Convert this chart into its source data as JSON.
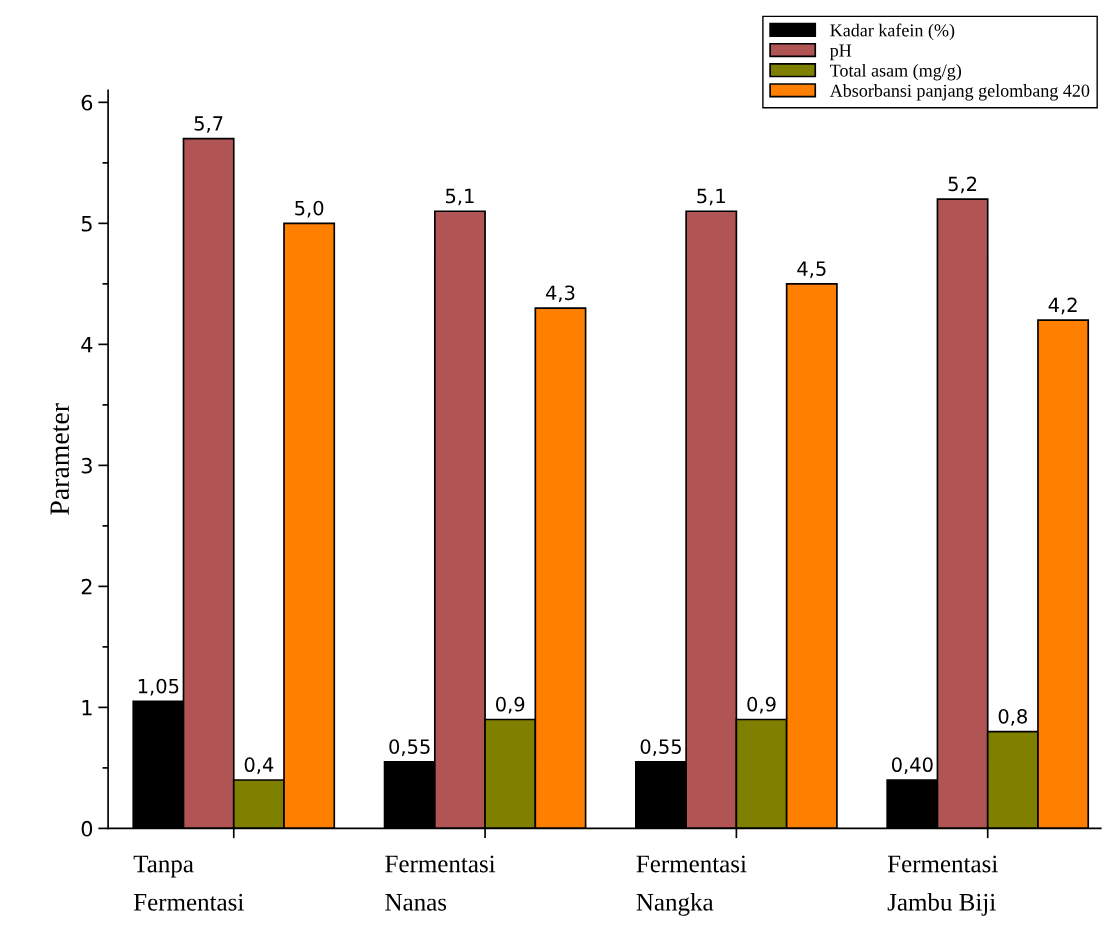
{
  "chart_data": {
    "type": "bar",
    "ylabel": "Parameter",
    "categories": [
      "Tanpa\nFermentasi",
      "Fermentasi\nNanas",
      "Fermentasi\nNangka",
      "Fermentasi\nJambu Biji"
    ],
    "series": [
      {
        "name": "Kadar kafein (%)",
        "color": "#000000",
        "values": [
          1.05,
          0.55,
          0.55,
          0.4
        ],
        "value_labels": [
          "1,05",
          "0,55",
          "0,55",
          "0,40"
        ]
      },
      {
        "name": "pH",
        "color": "#b05454",
        "values": [
          5.7,
          5.1,
          5.1,
          5.2
        ],
        "value_labels": [
          "5,7",
          "5,1",
          "5,1",
          "5,2"
        ]
      },
      {
        "name": "Total asam (mg/g)",
        "color": "#808000",
        "values": [
          0.4,
          0.9,
          0.9,
          0.8
        ],
        "value_labels": [
          "0,4",
          "0,9",
          "0,9",
          "0,8"
        ]
      },
      {
        "name": "Absorbansi panjang gelombang 420",
        "color": "#ff8000",
        "values": [
          5.0,
          4.3,
          4.5,
          4.2
        ],
        "value_labels": [
          "5,0",
          "4,3",
          "4,5",
          "4,2"
        ]
      }
    ],
    "ylim": [
      0,
      6.1
    ],
    "yticks": [
      0,
      1,
      2,
      3,
      4,
      5,
      6
    ],
    "grid": false,
    "legend": "top right"
  }
}
